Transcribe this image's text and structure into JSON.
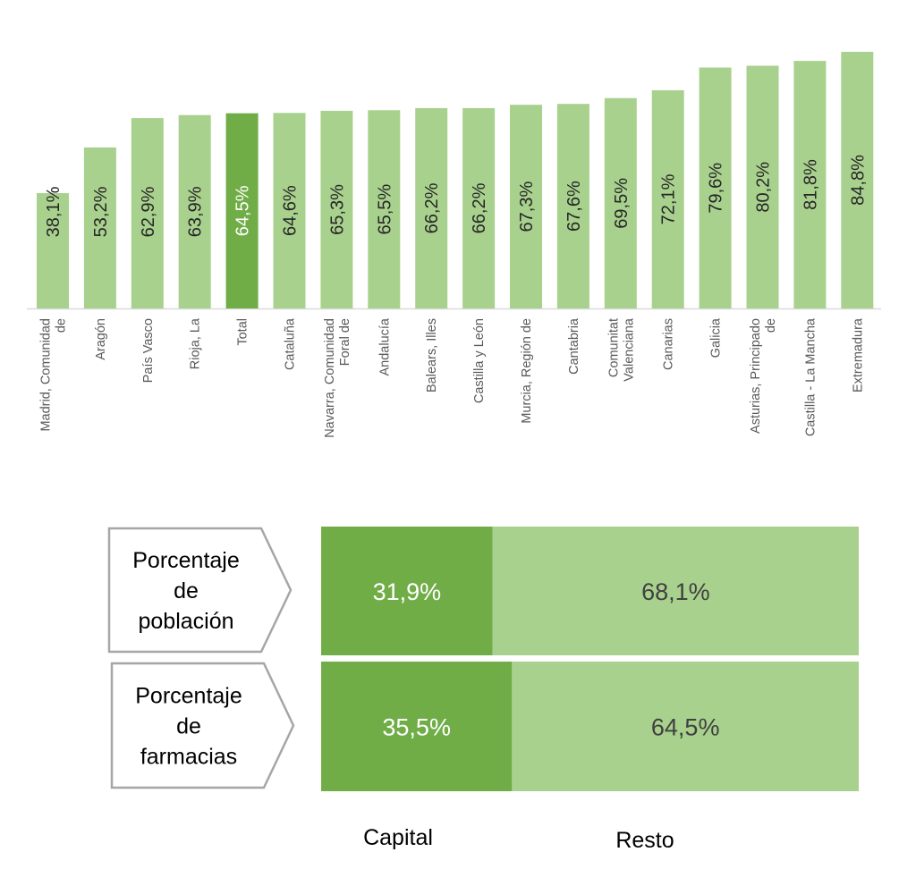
{
  "chart_data": [
    {
      "type": "bar",
      "title": "",
      "xlabel": "",
      "ylabel": "",
      "ylim": [
        0,
        100
      ],
      "grid": false,
      "categories": [
        [
          "Madrid, Comunidad",
          "de"
        ],
        [
          "Aragón"
        ],
        [
          "País Vasco"
        ],
        [
          "Rioja, La"
        ],
        [
          "Total"
        ],
        [
          "Cataluña"
        ],
        [
          "Navarra, Comunidad",
          "Foral de"
        ],
        [
          "Andalucía"
        ],
        [
          "Balears, Illes"
        ],
        [
          "Castilla y León"
        ],
        [
          "Murcia, Región de"
        ],
        [
          "Cantabria"
        ],
        [
          "Comunitat",
          "Valenciana"
        ],
        [
          "Canarias"
        ],
        [
          "Galicia"
        ],
        [
          "Asturias, Principado",
          "de"
        ],
        [
          "Castilla - La Mancha"
        ],
        [
          "Extremadura"
        ]
      ],
      "values": [
        38.1,
        53.2,
        62.9,
        63.9,
        64.5,
        64.6,
        65.3,
        65.5,
        66.2,
        66.2,
        67.3,
        67.6,
        69.5,
        72.1,
        79.6,
        80.2,
        81.8,
        84.8
      ],
      "data_labels": [
        "38,1%",
        "53,2%",
        "62,9%",
        "63,9%",
        "64,5%",
        "64,6%",
        "65,3%",
        "65,5%",
        "66,2%",
        "66,2%",
        "67,3%",
        "67,6%",
        "69,5%",
        "72,1%",
        "79,6%",
        "80,2%",
        "81,8%",
        "84,8%"
      ],
      "highlight_index": 4,
      "colors": {
        "bar": "#a9d18e",
        "highlight": "#70ad47",
        "axis": "#d9d9d9"
      }
    },
    {
      "type": "bar",
      "stacked": true,
      "orientation": "horizontal",
      "categories": [
        [
          "Porcentaje",
          "de",
          "población"
        ],
        [
          "Porcentaje",
          "de",
          "farmacias"
        ]
      ],
      "series": [
        {
          "name": "Capital",
          "values": [
            31.9,
            35.5
          ],
          "labels": [
            "31,9%",
            "35,5%"
          ],
          "color": "#70ad47"
        },
        {
          "name": "Resto",
          "values": [
            68.1,
            64.5
          ],
          "labels": [
            "68,1%",
            "64,5%"
          ],
          "color": "#a9d18e"
        }
      ],
      "xlim": [
        0,
        100
      ]
    }
  ]
}
